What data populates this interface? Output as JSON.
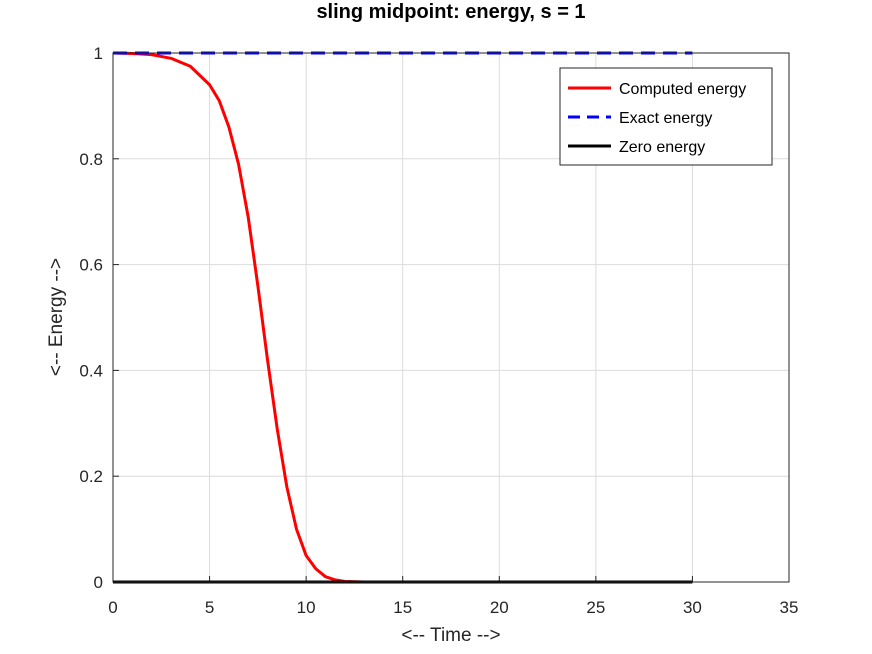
{
  "chart_data": {
    "type": "line",
    "title": "sling midpoint: energy, s = 1",
    "xlabel": "<-- Time -->",
    "ylabel": "<-- Energy -->",
    "xlim": [
      0,
      35
    ],
    "ylim": [
      0,
      1
    ],
    "xticks": [
      "0",
      "5",
      "10",
      "15",
      "20",
      "25",
      "30",
      "35"
    ],
    "yticks": [
      "0",
      "0.2",
      "0.4",
      "0.6",
      "0.8",
      "1"
    ],
    "grid": true,
    "legend_position": "top-right",
    "series": [
      {
        "name": "Computed energy",
        "color": "#ff0000",
        "style": "solid",
        "x": [
          0,
          1,
          2,
          3,
          4,
          5,
          5.5,
          6,
          6.5,
          7,
          7.5,
          8,
          8.5,
          9,
          9.5,
          10,
          10.5,
          11,
          11.5,
          12,
          13,
          14,
          15,
          20,
          25,
          30
        ],
        "y": [
          1.0,
          0.999,
          0.997,
          0.99,
          0.975,
          0.94,
          0.91,
          0.86,
          0.79,
          0.69,
          0.56,
          0.42,
          0.29,
          0.18,
          0.1,
          0.05,
          0.025,
          0.01,
          0.004,
          0.001,
          0,
          0,
          0,
          0,
          0,
          0
        ]
      },
      {
        "name": "Exact energy",
        "color": "#0000ff",
        "style": "dashed",
        "x": [
          0,
          30
        ],
        "y": [
          1,
          1
        ]
      },
      {
        "name": "Zero energy",
        "color": "#000000",
        "style": "solid",
        "x": [
          0,
          30
        ],
        "y": [
          0,
          0
        ]
      }
    ]
  }
}
